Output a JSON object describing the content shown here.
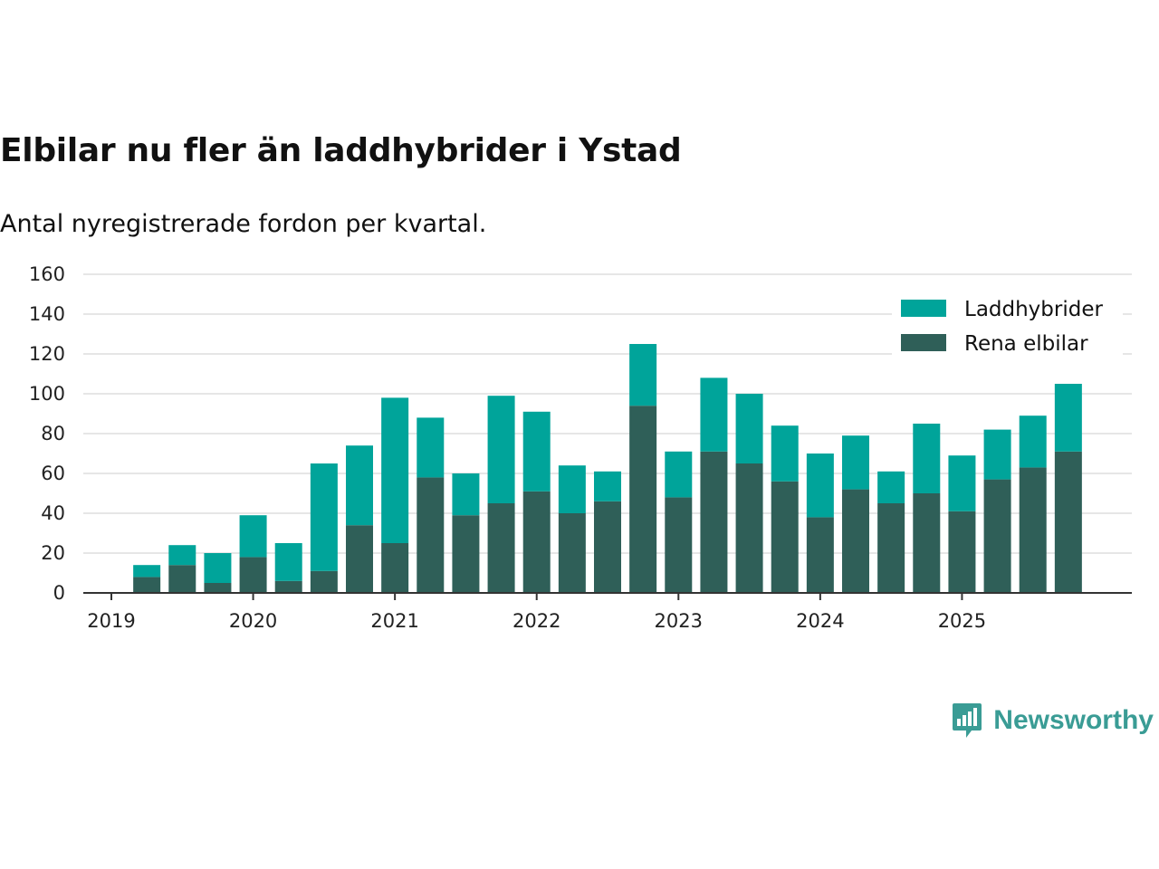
{
  "header": {
    "title": "Elbilar nu fler än laddhybrider i Ystad",
    "subtitle": "Antal nyregistrerade fordon per kvartal."
  },
  "brand": {
    "name": "Newsworthy",
    "icon": "newsworthy-logo-icon",
    "color": "#3a9c95"
  },
  "chart_data": {
    "type": "bar",
    "stacked": true,
    "title": "Elbilar nu fler än laddhybrider i Ystad",
    "subtitle": "Antal nyregistrerade fordon per kvartal.",
    "xlabel": "",
    "ylabel": "",
    "ylim": [
      0,
      160
    ],
    "yticks": [
      0,
      20,
      40,
      60,
      80,
      100,
      120,
      140,
      160
    ],
    "grid": true,
    "legend_position": "top-right",
    "x_start": 2019.0,
    "x_end": 2026.0,
    "xticks": [
      {
        "label": "2019",
        "value": 2019.0
      },
      {
        "label": "2020",
        "value": 2020.0
      },
      {
        "label": "2021",
        "value": 2021.0
      },
      {
        "label": "2022",
        "value": 2022.0
      },
      {
        "label": "2023",
        "value": 2023.0
      },
      {
        "label": "2024",
        "value": 2024.0
      },
      {
        "label": "2025",
        "value": 2025.0
      }
    ],
    "categories": [
      "2019 Q2",
      "2019 Q3",
      "2019 Q4",
      "2020 Q1",
      "2020 Q2",
      "2020 Q3",
      "2020 Q4",
      "2021 Q1",
      "2021 Q2",
      "2021 Q3",
      "2021 Q4",
      "2022 Q1",
      "2022 Q2",
      "2022 Q3",
      "2022 Q4",
      "2023 Q1",
      "2023 Q2",
      "2023 Q3",
      "2023 Q4",
      "2024 Q1",
      "2024 Q2",
      "2024 Q3",
      "2024 Q4",
      "2025 Q1",
      "2025 Q2",
      "2025 Q3",
      "2025 Q4"
    ],
    "positions": [
      2019.25,
      2019.5,
      2019.75,
      2020.0,
      2020.25,
      2020.5,
      2020.75,
      2021.0,
      2021.25,
      2021.5,
      2021.75,
      2022.0,
      2022.25,
      2022.5,
      2022.75,
      2023.0,
      2023.25,
      2023.5,
      2023.75,
      2024.0,
      2024.25,
      2024.5,
      2024.75,
      2025.0,
      2025.25,
      2025.5,
      2025.75
    ],
    "series": [
      {
        "name": "Rena elbilar",
        "color": "#2f5f58",
        "values": [
          8,
          14,
          5,
          18,
          6,
          11,
          34,
          25,
          58,
          39,
          45,
          51,
          40,
          46,
          94,
          48,
          71,
          65,
          56,
          38,
          52,
          45,
          50,
          41,
          57,
          63,
          71
        ]
      },
      {
        "name": "Laddhybrider",
        "color": "#00a49a",
        "values": [
          6,
          10,
          15,
          21,
          19,
          54,
          40,
          73,
          30,
          21,
          54,
          40,
          24,
          15,
          31,
          23,
          37,
          35,
          28,
          32,
          27,
          16,
          35,
          28,
          25,
          26,
          34
        ]
      }
    ],
    "legend": [
      "Laddhybrider",
      "Rena elbilar"
    ]
  }
}
